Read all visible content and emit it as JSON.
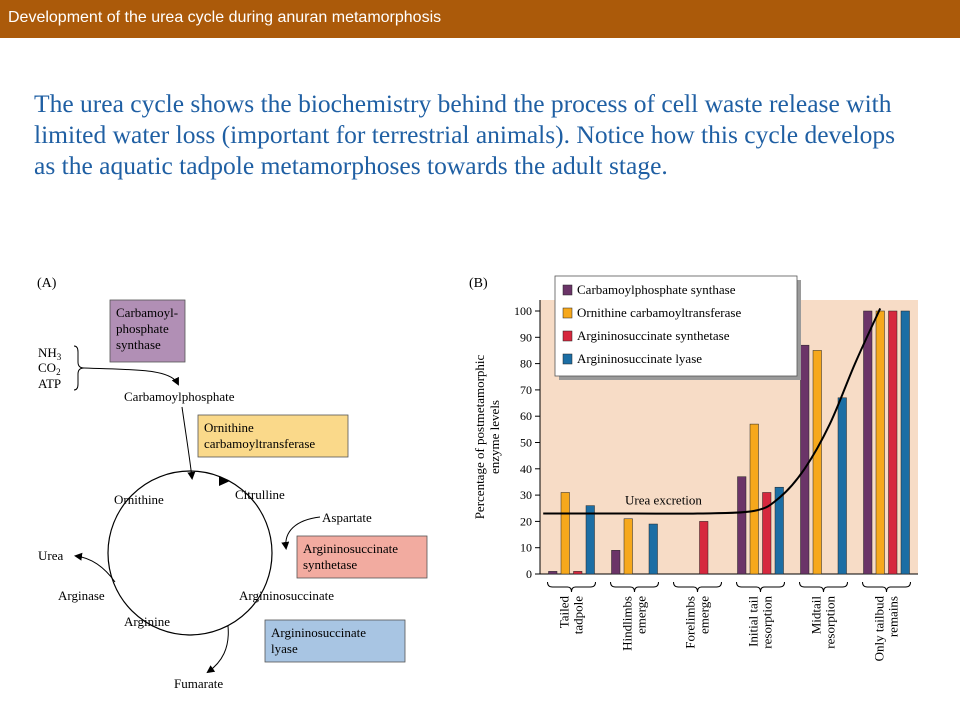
{
  "header": {
    "title": "Development of the urea cycle during anuran metamorphosis"
  },
  "intro": "The urea cycle shows the biochemistry behind the process of cell waste release with limited water loss (important for terrestrial animals).  Notice how this cycle develops as the aquatic tadpole metamorphoses towards the adult stage.",
  "diagram": {
    "panel_label": "(A)",
    "enzymes": {
      "cps": [
        "Carbamoyl-",
        "phosphate",
        "synthase"
      ],
      "otc": [
        "Ornithine",
        "carbamoyltransferase"
      ],
      "ass": [
        "Argininosuccinate",
        "synthetase"
      ],
      "asl": [
        "Argininosuccinate",
        "lyase"
      ]
    },
    "inputs": {
      "nh3": "NH",
      "nh3_sub": "3",
      "co2": "CO",
      "co2_sub": "2",
      "atp": "ATP"
    },
    "metabolites": {
      "carbamoylphosphate": "Carbamoylphosphate",
      "ornithine": "Ornithine",
      "citrulline": "Citrulline",
      "aspartate": "Aspartate",
      "argininosuccinate": "Argininosuccinate",
      "arginine": "Arginine",
      "arginase": "Arginase",
      "urea": "Urea",
      "fumarate": "Fumarate"
    },
    "colors": {
      "cps": "#b18fb5",
      "otc": "#fad98a",
      "ass": "#f2aba0",
      "asl": "#a8c5e3"
    }
  },
  "chart_data": {
    "type": "bar",
    "panel_label": "(B)",
    "ylabel": "Percentage of postmetamorphic enzyme levels",
    "ylim": [
      0,
      100
    ],
    "yticks": [
      0,
      10,
      20,
      30,
      40,
      50,
      60,
      70,
      80,
      90,
      100
    ],
    "categories": [
      [
        "Tailed",
        "tadpole"
      ],
      [
        "Hindlimbs",
        "emerge"
      ],
      [
        "Forelimbs",
        "emerge"
      ],
      [
        "Initial tail",
        "resorption"
      ],
      [
        "Midtail",
        "resorption"
      ],
      [
        "Only tailbud",
        "remains"
      ]
    ],
    "series": [
      {
        "name": "Carbamoylphosphate synthase",
        "color": "#6b3468",
        "values": [
          1,
          9,
          null,
          37,
          87,
          100
        ]
      },
      {
        "name": "Ornithine carbamoyltransferase",
        "color": "#f6a81c",
        "values": [
          31,
          21,
          null,
          57,
          85,
          100
        ]
      },
      {
        "name": "Argininosuccinate synthetase",
        "color": "#d6283e",
        "values": [
          1,
          null,
          20,
          31,
          null,
          100
        ]
      },
      {
        "name": "Argininosuccinate lyase",
        "color": "#1c6ea4",
        "values": [
          26,
          19,
          null,
          33,
          67,
          100
        ]
      }
    ],
    "annotation": "Urea excretion",
    "curve": [
      [
        -0.45,
        23
      ],
      [
        0,
        23
      ],
      [
        1,
        23
      ],
      [
        2,
        23
      ],
      [
        2.9,
        24
      ],
      [
        3.3,
        29
      ],
      [
        3.7,
        40
      ],
      [
        4.1,
        57
      ],
      [
        4.5,
        80
      ],
      [
        4.9,
        101
      ]
    ],
    "background": "#f7dcc6",
    "legend_position": "top-left"
  }
}
